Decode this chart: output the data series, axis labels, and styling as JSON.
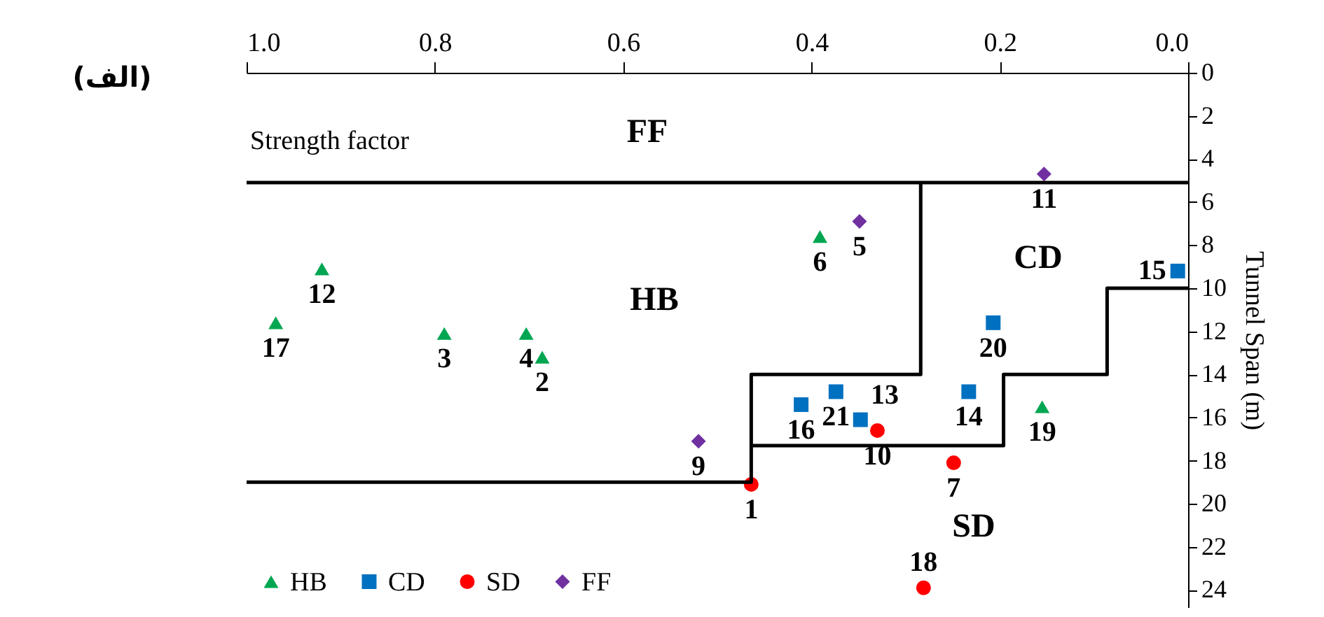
{
  "chart_data": {
    "type": "scatter",
    "xlabel": "Strength factor",
    "ylabel": "Tunnel Span (m)",
    "xlim": [
      1.0,
      0.0
    ],
    "xticks": [
      {
        "value": 1.0,
        "label": "1.0"
      },
      0.8,
      0.6,
      0.4,
      0.2,
      {
        "value": 0.0,
        "label": "0.0"
      }
    ],
    "ylim": [
      24.8,
      0
    ],
    "yticks": [
      0,
      2,
      4,
      6,
      8,
      10,
      12,
      14,
      16,
      18,
      20,
      22,
      24
    ],
    "grid": false,
    "legend": "bottom left",
    "series": [
      {
        "name": "HB",
        "type": "scatter",
        "marker": "triangle",
        "color": "#00a651",
        "x": [
          0.92,
          0.969,
          0.79,
          0.703,
          0.686,
          0.391,
          0.155
        ],
        "values": [
          9.1,
          11.6,
          12.1,
          12.1,
          13.2,
          7.6,
          15.5
        ]
      },
      {
        "name": "CD",
        "type": "scatter",
        "marker": "square",
        "color": "#0070c0",
        "x": [
          0.011,
          0.207,
          0.374,
          0.411,
          0.348,
          0.233
        ],
        "values": [
          9.2,
          11.6,
          14.8,
          15.4,
          16.1,
          14.8
        ]
      },
      {
        "name": "SD",
        "type": "scatter",
        "marker": "circle",
        "color": "#ff0000",
        "x": [
          0.464,
          0.33,
          0.249,
          0.281
        ],
        "values": [
          19.1,
          16.6,
          18.1,
          23.9
        ]
      },
      {
        "name": "FF",
        "type": "scatter",
        "marker": "diamond",
        "color": "#7030a0",
        "x": [
          0.153,
          0.349,
          0.52
        ],
        "values": [
          4.7,
          6.9,
          17.1
        ]
      },
      {
        "type": "line",
        "color": "#000000",
        "x": [
          1.0,
          0.0
        ],
        "values": [
          5.1,
          5.1
        ]
      },
      {
        "type": "line",
        "color": "#000000",
        "x": [
          0.284,
          0.284,
          0.464,
          0.464,
          1.0
        ],
        "values": [
          5.1,
          14,
          14,
          19,
          19
        ]
      },
      {
        "type": "line",
        "color": "#000000",
        "x": [
          0.464,
          0.196,
          0.196,
          0.086,
          0.086,
          0.0
        ],
        "values": [
          17.3,
          17.3,
          14,
          14,
          10,
          10
        ]
      }
    ],
    "annotations": [
      "(الف)",
      "FF",
      "HB",
      "CD",
      "SD",
      {
        "text": "12",
        "x": 0.92,
        "y": 9.1
      },
      {
        "text": "17",
        "x": 0.969,
        "y": 11.6
      },
      {
        "text": "3",
        "x": 0.79,
        "y": 12.1
      },
      {
        "text": "4",
        "x": 0.703,
        "y": 12.1
      },
      {
        "text": "2",
        "x": 0.686,
        "y": 13.2
      },
      {
        "text": "6",
        "x": 0.391,
        "y": 7.6
      },
      {
        "text": "19",
        "x": 0.155,
        "y": 15.5
      },
      {
        "text": "15",
        "x": 0.011,
        "y": 9.2
      },
      {
        "text": "20",
        "x": 0.207,
        "y": 11.6
      },
      {
        "text": "21",
        "x": 0.374,
        "y": 14.8
      },
      {
        "text": "16",
        "x": 0.411,
        "y": 15.4
      },
      {
        "text": "13",
        "x": 0.348,
        "y": 16.1
      },
      {
        "text": "14",
        "x": 0.233,
        "y": 14.8
      },
      {
        "text": "1",
        "x": 0.464,
        "y": 19.1
      },
      {
        "text": "10",
        "x": 0.33,
        "y": 16.6
      },
      {
        "text": "7",
        "x": 0.249,
        "y": 18.1
      },
      {
        "text": "18",
        "x": 0.281,
        "y": 23.9
      },
      {
        "text": "11",
        "x": 0.153,
        "y": 4.7
      },
      {
        "text": "5",
        "x": 0.349,
        "y": 6.9
      },
      {
        "text": "9",
        "x": 0.52,
        "y": 17.1
      }
    ]
  }
}
